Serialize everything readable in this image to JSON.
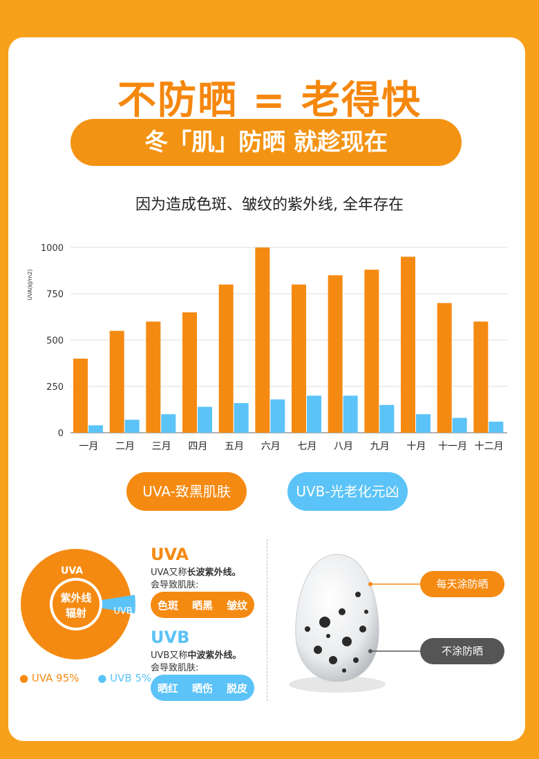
{
  "header": {
    "title": "不防晒 = 老得快",
    "subtitle": "冬「肌」防晒 就趁现在",
    "caption": "因为造成色斑、皱纹的紫外线, 全年存在"
  },
  "chart_data": [
    {
      "type": "bar",
      "ylabel": "UVA(kJ/m2)",
      "ylim": [
        0,
        1000
      ],
      "yticks": [
        0,
        250,
        500,
        750,
        1000
      ],
      "grid": true,
      "categories": [
        "一月",
        "二月",
        "三月",
        "四月",
        "五月",
        "六月",
        "七月",
        "八月",
        "九月",
        "十月",
        "十一月",
        "十二月"
      ],
      "series": [
        {
          "name": "UVA-致黑肌肤",
          "color": "#f58a12",
          "values": [
            400,
            550,
            600,
            650,
            800,
            1000,
            800,
            850,
            880,
            950,
            700,
            600
          ]
        },
        {
          "name": "UVB-光老化元凶",
          "color": "#5bc3f7",
          "values": [
            40,
            70,
            100,
            140,
            160,
            180,
            200,
            200,
            150,
            100,
            80,
            60
          ]
        }
      ]
    },
    {
      "type": "pie",
      "center_label": [
        "紫外线",
        "辐射"
      ],
      "slices": [
        {
          "name": "UVA",
          "value": 95,
          "color": "#f58a12"
        },
        {
          "name": "UVB",
          "value": 5,
          "color": "#5bc3f7"
        }
      ]
    }
  ],
  "legend_pills": {
    "uva": "UVA-致黑肌肤",
    "uvb": "UVB-光老化元凶"
  },
  "donut_legend": {
    "uva": "● UVA 95%",
    "uvb": "● UVB 5%"
  },
  "uva_info": {
    "head": "UVA",
    "line1_pre": "UVA又称",
    "line1_bold": "长波紫外线。",
    "line2": "会导致肌肤:",
    "tags": [
      "色斑",
      "晒黑",
      "皱纹"
    ]
  },
  "uvb_info": {
    "head": "UVB",
    "line1_pre": "UVB又称",
    "line1_bold": "中波紫外线。",
    "line2": "会导致肌肤:",
    "tags": [
      "晒红",
      "晒伤",
      "脱皮"
    ]
  },
  "egg_callouts": {
    "top": "每天涂防晒",
    "bottom": "不涂防晒"
  },
  "colors": {
    "background": "#f7a01a",
    "orange": "#f58a12",
    "blue": "#5bc3f7",
    "gray": "#555555"
  }
}
